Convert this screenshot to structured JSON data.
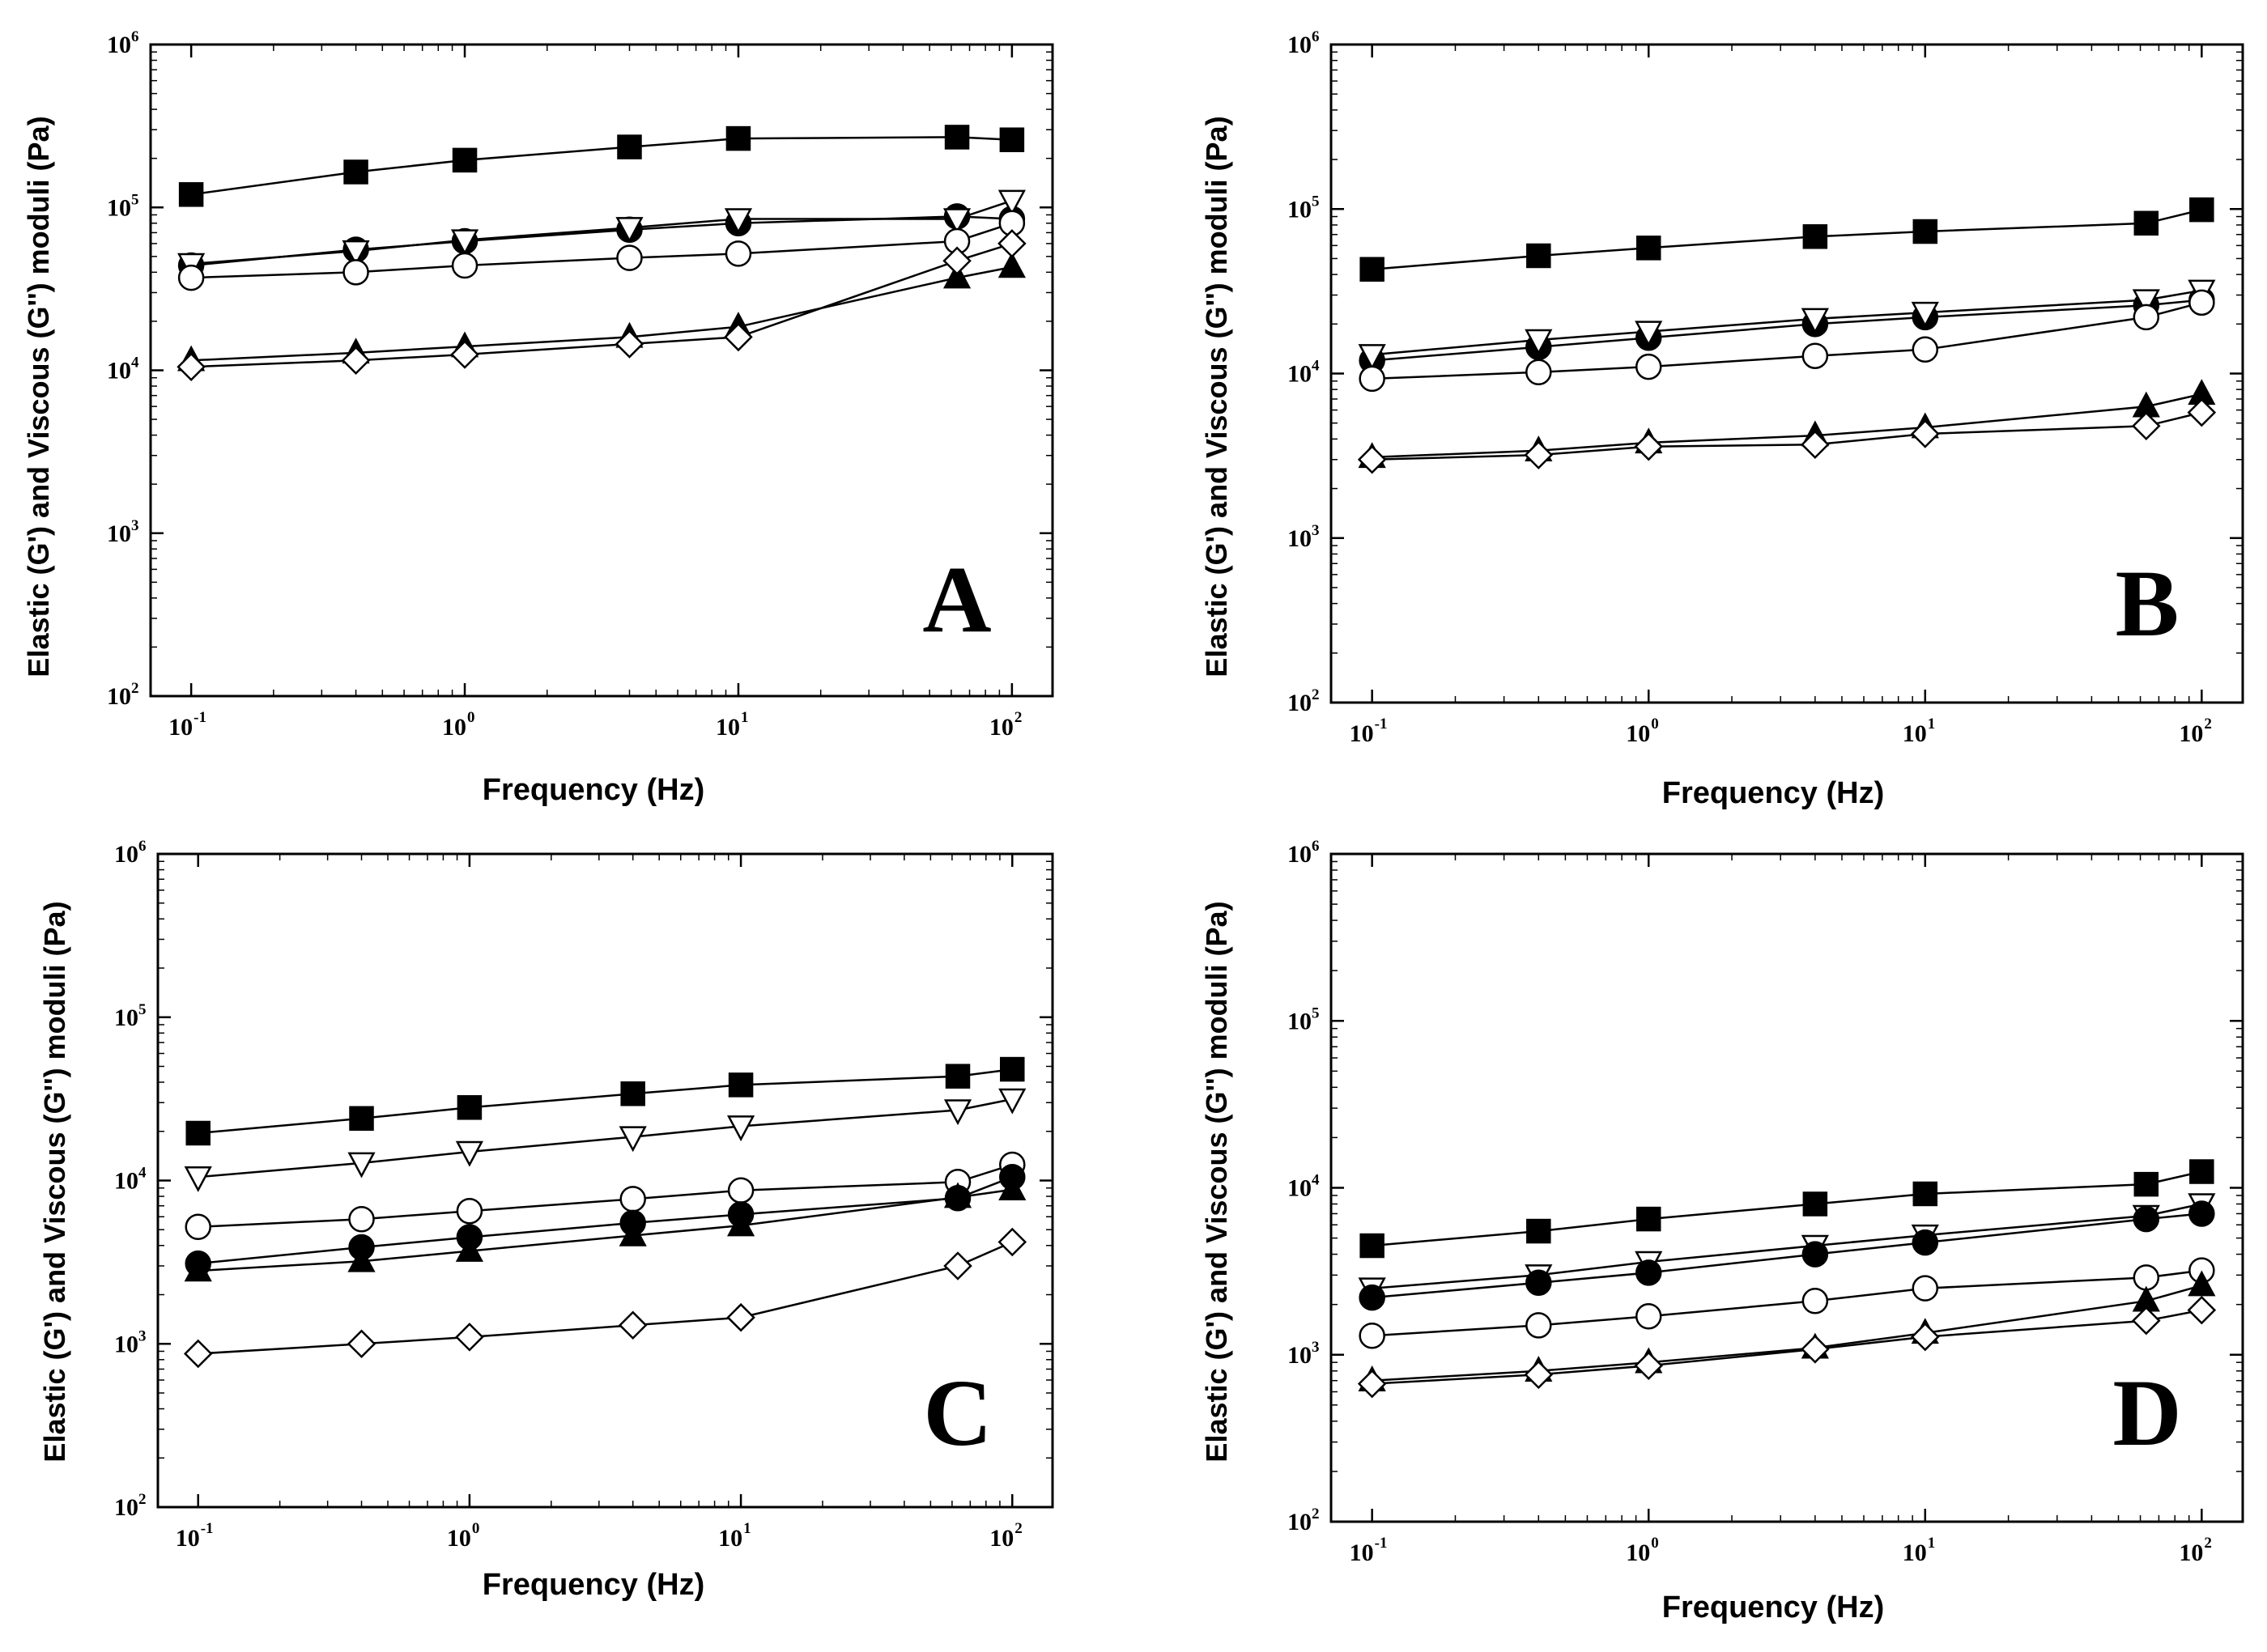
{
  "chart_data": [
    {
      "panel": "A",
      "type": "scatter",
      "xlabel": "Frequency (Hz)",
      "ylabel": "Elastic (G') and Viscous (G'') moduli (Pa)",
      "xscale": "log",
      "yscale": "log",
      "xlim": [
        0.1,
        100
      ],
      "ylim": [
        100,
        1000000
      ],
      "xticks": [
        "10",
        "10",
        "10",
        "10"
      ],
      "xtick_exponents": [
        "-1",
        "0",
        "1",
        "2"
      ],
      "yticks": [
        "10",
        "10",
        "10",
        "10",
        "10"
      ],
      "ytick_exponents": [
        "2",
        "3",
        "4",
        "5",
        "6"
      ],
      "x": [
        0.1,
        0.4,
        1,
        4,
        10,
        63,
        100
      ],
      "series": [
        {
          "name": "filled-square",
          "marker": "square",
          "filled": true,
          "values": [
            120000,
            165000,
            195000,
            235000,
            265000,
            270000,
            260000
          ]
        },
        {
          "name": "filled-circle",
          "marker": "circle",
          "filled": true,
          "values": [
            44000,
            55000,
            62000,
            73000,
            80000,
            88000,
            85000
          ]
        },
        {
          "name": "open-triangle-down",
          "marker": "triangle-down",
          "filled": false,
          "values": [
            45000,
            54000,
            63000,
            75000,
            85000,
            85000,
            110000
          ]
        },
        {
          "name": "open-circle",
          "marker": "circle",
          "filled": false,
          "values": [
            37000,
            40000,
            44000,
            49000,
            52000,
            62000,
            80000
          ]
        },
        {
          "name": "filled-triangle-up",
          "marker": "triangle-up",
          "filled": true,
          "values": [
            11500,
            12800,
            14000,
            16000,
            18500,
            37000,
            43000
          ]
        },
        {
          "name": "open-diamond",
          "marker": "diamond",
          "filled": false,
          "values": [
            10500,
            11500,
            12500,
            14500,
            16000,
            47000,
            60000
          ]
        }
      ]
    },
    {
      "panel": "B",
      "type": "scatter",
      "xlabel": "Frequency (Hz)",
      "ylabel": "Elastic (G') and Viscous (G'') moduli (Pa)",
      "xscale": "log",
      "yscale": "log",
      "xlim": [
        0.1,
        100
      ],
      "ylim": [
        100,
        1000000
      ],
      "xticks": [
        "10",
        "10",
        "10",
        "10"
      ],
      "xtick_exponents": [
        "-1",
        "0",
        "1",
        "2"
      ],
      "yticks": [
        "10",
        "10",
        "10",
        "10",
        "10"
      ],
      "ytick_exponents": [
        "2",
        "3",
        "4",
        "5",
        "6"
      ],
      "x": [
        0.1,
        0.4,
        1,
        4,
        10,
        63,
        100
      ],
      "series": [
        {
          "name": "filled-square",
          "marker": "square",
          "filled": true,
          "values": [
            43000,
            52000,
            58000,
            68000,
            73000,
            82000,
            99000
          ]
        },
        {
          "name": "filled-circle",
          "marker": "circle",
          "filled": true,
          "values": [
            12000,
            14500,
            16500,
            20000,
            22000,
            26000,
            28000
          ]
        },
        {
          "name": "open-triangle-down",
          "marker": "triangle-down",
          "filled": false,
          "values": [
            13000,
            16000,
            18000,
            21500,
            23500,
            28000,
            32000
          ]
        },
        {
          "name": "open-circle",
          "marker": "circle",
          "filled": false,
          "values": [
            9300,
            10200,
            11000,
            12800,
            14000,
            22000,
            27000
          ]
        },
        {
          "name": "filled-triangle-up",
          "marker": "triangle-up",
          "filled": true,
          "values": [
            3100,
            3400,
            3800,
            4200,
            4700,
            6300,
            7500
          ]
        },
        {
          "name": "open-diamond",
          "marker": "diamond",
          "filled": false,
          "values": [
            3000,
            3200,
            3600,
            3700,
            4300,
            4800,
            5800
          ]
        }
      ]
    },
    {
      "panel": "C",
      "type": "scatter",
      "xlabel": "Frequency (Hz)",
      "ylabel": "Elastic (G') and Viscous (G'') moduli (Pa)",
      "xscale": "log",
      "yscale": "log",
      "xlim": [
        0.1,
        100
      ],
      "ylim": [
        100,
        1000000
      ],
      "xticks": [
        "10",
        "10",
        "10",
        "10"
      ],
      "xtick_exponents": [
        "-1",
        "0",
        "1",
        "2"
      ],
      "yticks": [
        "10",
        "10",
        "10",
        "10",
        "10"
      ],
      "ytick_exponents": [
        "2",
        "3",
        "4",
        "5",
        "6"
      ],
      "x": [
        0.1,
        0.4,
        1,
        4,
        10,
        63,
        100
      ],
      "series": [
        {
          "name": "filled-square",
          "marker": "square",
          "filled": true,
          "values": [
            19500,
            24000,
            28000,
            34000,
            38500,
            43500,
            48000
          ]
        },
        {
          "name": "open-triangle-down",
          "marker": "triangle-down",
          "filled": false,
          "values": [
            10500,
            12800,
            15000,
            18500,
            21500,
            27000,
            31500
          ]
        },
        {
          "name": "open-circle",
          "marker": "circle",
          "filled": false,
          "values": [
            5200,
            5800,
            6500,
            7700,
            8700,
            9800,
            12500
          ]
        },
        {
          "name": "filled-circle",
          "marker": "circle",
          "filled": true,
          "values": [
            3100,
            3900,
            4500,
            5500,
            6200,
            7800,
            10500
          ]
        },
        {
          "name": "filled-triangle-up",
          "marker": "triangle-up",
          "filled": true,
          "values": [
            2800,
            3200,
            3700,
            4600,
            5300,
            7900,
            8800
          ]
        },
        {
          "name": "open-diamond",
          "marker": "diamond",
          "filled": false,
          "values": [
            870,
            1000,
            1100,
            1300,
            1450,
            3000,
            4200
          ]
        }
      ]
    },
    {
      "panel": "D",
      "type": "scatter",
      "xlabel": "Frequency (Hz)",
      "ylabel": "Elastic (G') and Viscous (G'') moduli (Pa)",
      "xscale": "log",
      "yscale": "log",
      "xlim": [
        0.1,
        100
      ],
      "ylim": [
        100,
        1000000
      ],
      "xticks": [
        "10",
        "10",
        "10",
        "10"
      ],
      "xtick_exponents": [
        "-1",
        "0",
        "1",
        "2"
      ],
      "yticks": [
        "10",
        "10",
        "10",
        "10",
        "10"
      ],
      "ytick_exponents": [
        "2",
        "3",
        "4",
        "5",
        "6"
      ],
      "x": [
        0.1,
        0.4,
        1,
        4,
        10,
        63,
        100
      ],
      "series": [
        {
          "name": "filled-square",
          "marker": "square",
          "filled": true,
          "values": [
            4500,
            5500,
            6500,
            8000,
            9200,
            10500,
            12500
          ]
        },
        {
          "name": "open-triangle-down",
          "marker": "triangle-down",
          "filled": false,
          "values": [
            2500,
            3000,
            3600,
            4500,
            5200,
            6800,
            8000
          ]
        },
        {
          "name": "filled-circle",
          "marker": "circle",
          "filled": true,
          "values": [
            2200,
            2700,
            3100,
            4000,
            4700,
            6500,
            7000
          ]
        },
        {
          "name": "open-circle",
          "marker": "circle",
          "filled": false,
          "values": [
            1300,
            1500,
            1700,
            2100,
            2500,
            2900,
            3200
          ]
        },
        {
          "name": "filled-triangle-up",
          "marker": "triangle-up",
          "filled": true,
          "values": [
            700,
            800,
            900,
            1100,
            1350,
            2100,
            2600
          ]
        },
        {
          "name": "open-diamond",
          "marker": "diamond",
          "filled": false,
          "values": [
            670,
            760,
            860,
            1080,
            1280,
            1600,
            1850
          ]
        }
      ]
    }
  ]
}
